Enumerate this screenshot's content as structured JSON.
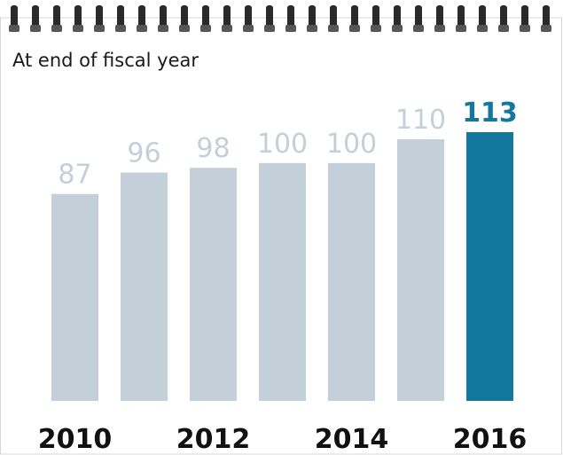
{
  "chart_data": {
    "type": "bar",
    "subtitle": "At end of fiscal year",
    "categories": [
      "2010",
      null,
      "2012",
      null,
      "2014",
      null,
      "2016"
    ],
    "values": [
      87,
      96,
      98,
      100,
      100,
      110,
      113
    ],
    "colors": [
      "#c3cfd9",
      "#c3cfd9",
      "#c3cfd9",
      "#c3cfd9",
      "#c3cfd9",
      "#c3cfd9",
      "#14789c"
    ]
  }
}
